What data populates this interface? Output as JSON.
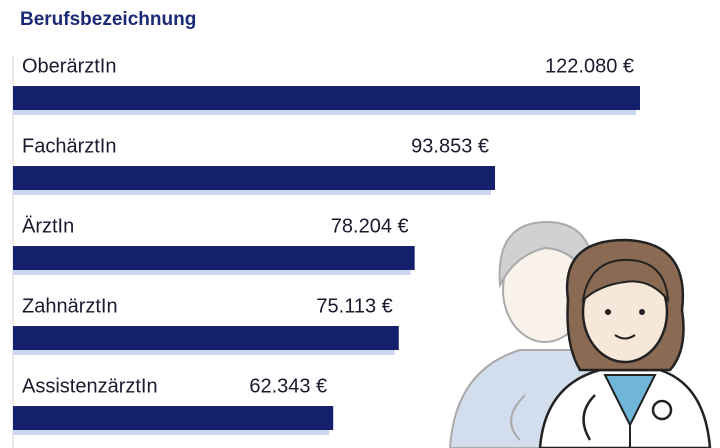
{
  "chart_data": {
    "type": "bar",
    "orientation": "horizontal",
    "title": "Berufsbezeichnung",
    "categories": [
      "OberärztIn",
      "FachärztIn",
      "ÄrztIn",
      "ZahnärztIn",
      "AssistenzärztIn"
    ],
    "values": [
      122080,
      93853,
      78204,
      75113,
      62343
    ],
    "value_labels": [
      "122.080 €",
      "93.853 €",
      "78.204 €",
      "75.113 €",
      "62.343 €"
    ],
    "color": "#14206b",
    "shadow_color": "#c9d8ef"
  }
}
